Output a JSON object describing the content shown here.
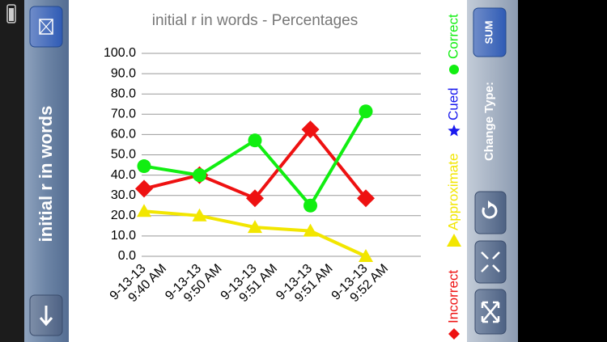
{
  "ui": {
    "side_title": "initial r in words",
    "sum_button": "SUM",
    "change_type_label": "Change Type:"
  },
  "chart_data": {
    "type": "line",
    "title": "initial r in words - Percentages",
    "categories": [
      "9-13-13 9:40 AM",
      "9-13-13 9:50 AM",
      "9-13-13 9:51 AM",
      "9-13-13 9:51 AM",
      "9-13-13 9:52 AM"
    ],
    "ylim": [
      0,
      100
    ],
    "yticks": [
      {
        "value": 0,
        "label": "0.0"
      },
      {
        "value": 10,
        "label": "10.0"
      },
      {
        "value": 20,
        "label": "20.0"
      },
      {
        "value": 30,
        "label": "30.0"
      },
      {
        "value": 40,
        "label": "40.0"
      },
      {
        "value": 50,
        "label": "50.0"
      },
      {
        "value": 60,
        "label": "60.0"
      },
      {
        "value": 70,
        "label": "70.0"
      },
      {
        "value": 80,
        "label": "80.0"
      },
      {
        "value": 90,
        "label": "90.0"
      },
      {
        "value": 100,
        "label": "100.0"
      }
    ],
    "grid": true,
    "series": [
      {
        "name": "Incorrect",
        "color": "#ee1111",
        "marker": "diamond",
        "values": [
          33.3,
          40,
          28.6,
          62.5,
          28.6
        ]
      },
      {
        "name": "Approximate",
        "color": "#f2e600",
        "marker": "triangle",
        "values": [
          22.2,
          20,
          14.3,
          12.5,
          0
        ]
      },
      {
        "name": "Cued",
        "color": "#1a1aee",
        "marker": "star",
        "values": [
          null,
          null,
          null,
          null,
          null
        ]
      },
      {
        "name": "Correct",
        "color": "#11ee11",
        "marker": "circle",
        "values": [
          44.4,
          40,
          57.1,
          25,
          71.4
        ]
      }
    ]
  }
}
